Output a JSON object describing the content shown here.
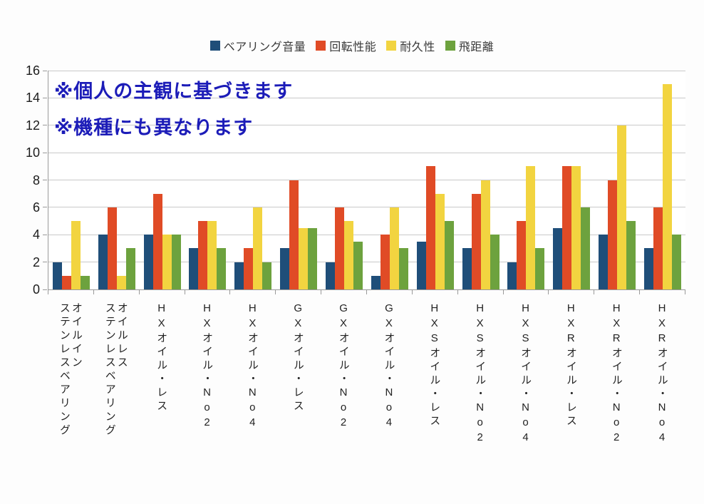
{
  "annotations": {
    "line1": "※個人の主観に基づきます",
    "line2": "※機種にも異なります",
    "color": "#1c1cb8"
  },
  "colors": {
    "bearing_noise": "#1F4E79",
    "rotation": "#E04B26",
    "durability": "#F2D440",
    "distance": "#6DA23E",
    "gridline": "#c9c9c9",
    "axis": "#9a9a9a"
  },
  "chart_data": {
    "type": "bar",
    "title": "",
    "xlabel": "",
    "ylabel": "",
    "ylim": [
      0,
      16
    ],
    "yticks": [
      0,
      2,
      4,
      6,
      8,
      10,
      12,
      14,
      16
    ],
    "grid": true,
    "legend_position": "top",
    "categories": [
      "オイルイン\nステンレスベアリング",
      "オイルレス\nステンレスベアリング",
      "HXオイル・レス",
      "HXオイル・No2",
      "HXオイル・No4",
      "GXオイル・レス",
      "GXオイル・No2",
      "GXオイル・No4",
      "HXSオイル・レス",
      "HXSオイル・No2",
      "HXSオイル・No4",
      "HXRオイル・レス",
      "HXRオイル・No2",
      "HXRオイル・No4"
    ],
    "series": [
      {
        "name": "ベアリング音量",
        "color": "#1F4E79",
        "values": [
          2,
          4,
          4,
          3,
          2,
          3,
          2,
          1,
          3.5,
          3,
          2,
          4.5,
          4,
          3
        ]
      },
      {
        "name": "回転性能",
        "color": "#E04B26",
        "values": [
          1,
          6,
          7,
          5,
          3,
          8,
          6,
          4,
          9,
          7,
          5,
          9,
          8,
          6
        ]
      },
      {
        "name": "耐久性",
        "color": "#F2D440",
        "values": [
          5,
          1,
          4,
          5,
          6,
          4.5,
          5,
          6,
          7,
          8,
          9,
          9,
          12,
          15
        ]
      },
      {
        "name": "飛距離",
        "color": "#6DA23E",
        "values": [
          1,
          3,
          4,
          3,
          2,
          4.5,
          3.5,
          3,
          5,
          4,
          3,
          6,
          5,
          4
        ]
      }
    ]
  }
}
